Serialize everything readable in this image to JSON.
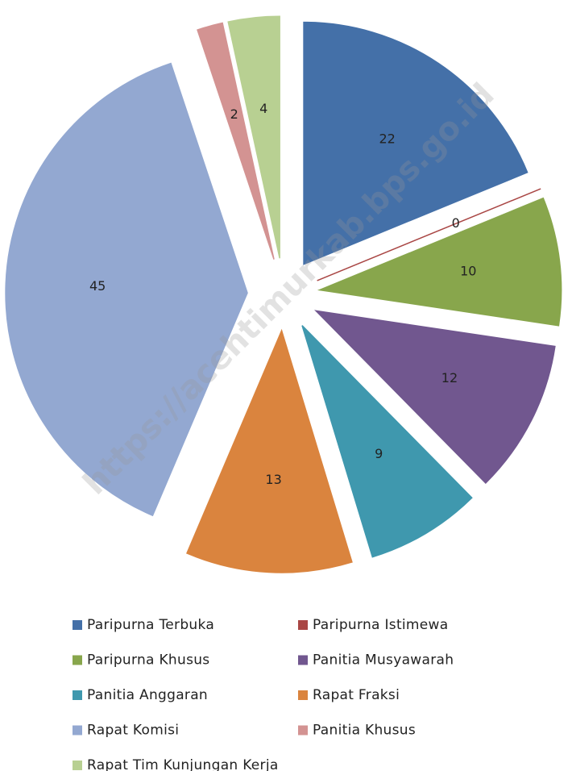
{
  "chart_data": {
    "type": "pie",
    "watermark": "https://acehtimurkab.bps.go.id",
    "categories": [
      "Paripurna Terbuka",
      "Paripurna Istimewa",
      "Paripurna Khusus",
      "Panitia Musyawarah",
      "Panitia Anggaran",
      "Rapat Fraksi",
      "Rapat Komisi",
      "Panitia Khusus",
      "Rapat Tim Kunjungan Kerja"
    ],
    "values": [
      22,
      0,
      10,
      12,
      9,
      13,
      45,
      2,
      4
    ],
    "colors": [
      "#4470a8",
      "#a94644",
      "#88a64c",
      "#71578f",
      "#3f98ae",
      "#da843e",
      "#93a8d1",
      "#d39392",
      "#b8d092"
    ],
    "exploded": true
  }
}
